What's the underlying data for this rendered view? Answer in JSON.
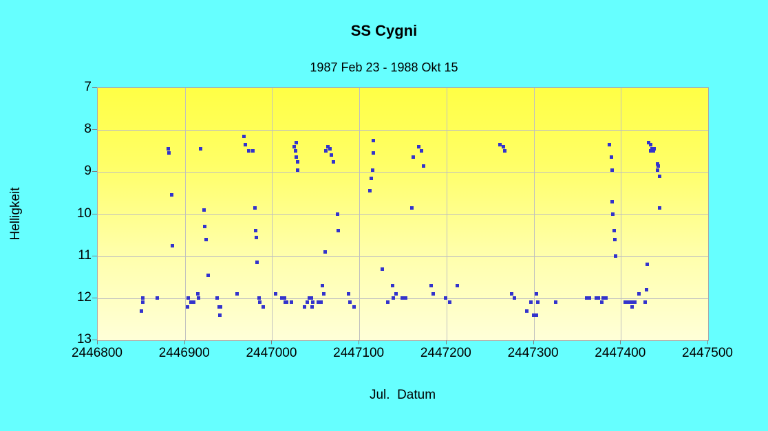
{
  "title": "SS Cygni",
  "subtitle": "1987 Feb 23 - 1988 Okt 15",
  "xlabel": "Jul.  Datum",
  "ylabel": "Helligkeit",
  "colors": {
    "page_background": "#66FFFF",
    "plot_gradient_top": "#FFFF45",
    "plot_gradient_bottom": "#FFFFD8",
    "point": "#3333CC",
    "gridline": "#BFBFBF",
    "text": "#000000"
  },
  "chart_data": {
    "type": "scatter",
    "title": "SS Cygni",
    "subtitle": "1987 Feb 23 - 1988 Okt 15",
    "xlabel": "Jul.  Datum",
    "ylabel": "Helligkeit",
    "xlim": [
      2446800,
      2447500
    ],
    "ylim": [
      7,
      13
    ],
    "y_axis_inverted": true,
    "grid": true,
    "marker": "square",
    "x_ticks": [
      2446800,
      2446900,
      2447000,
      2447100,
      2447200,
      2447300,
      2447400,
      2447500
    ],
    "y_ticks": [
      7,
      8,
      9,
      10,
      11,
      12,
      13
    ],
    "points": [
      [
        2446850,
        12.3
      ],
      [
        2446852,
        12.0
      ],
      [
        2446852,
        12.1
      ],
      [
        2446868,
        12.0
      ],
      [
        2446881,
        8.45
      ],
      [
        2446882,
        8.55
      ],
      [
        2446885,
        9.55
      ],
      [
        2446886,
        10.75
      ],
      [
        2446903,
        12.2
      ],
      [
        2446904,
        12.0
      ],
      [
        2446907,
        12.1
      ],
      [
        2446910,
        12.1
      ],
      [
        2446915,
        11.9
      ],
      [
        2446916,
        12.0
      ],
      [
        2446918,
        8.45
      ],
      [
        2446922,
        9.9
      ],
      [
        2446923,
        10.3
      ],
      [
        2446924,
        10.6
      ],
      [
        2446927,
        11.45
      ],
      [
        2446937,
        12.0
      ],
      [
        2446939,
        12.2
      ],
      [
        2446940,
        12.4
      ],
      [
        2446941,
        12.2
      ],
      [
        2446960,
        11.9
      ],
      [
        2446968,
        8.15
      ],
      [
        2446969,
        8.35
      ],
      [
        2446973,
        8.5
      ],
      [
        2446978,
        8.5
      ],
      [
        2446980,
        9.85
      ],
      [
        2446981,
        10.4
      ],
      [
        2446982,
        10.55
      ],
      [
        2446983,
        11.15
      ],
      [
        2446985,
        12.0
      ],
      [
        2446986,
        12.1
      ],
      [
        2446990,
        12.2
      ],
      [
        2447004,
        11.9
      ],
      [
        2447011,
        12.0
      ],
      [
        2447014,
        12.0
      ],
      [
        2447015,
        12.1
      ],
      [
        2447017,
        12.1
      ],
      [
        2447022,
        12.1
      ],
      [
        2447025,
        8.4
      ],
      [
        2447027,
        8.5
      ],
      [
        2447028,
        8.3
      ],
      [
        2447028,
        8.65
      ],
      [
        2447029,
        8.75
      ],
      [
        2447029,
        8.95
      ],
      [
        2447037,
        12.2
      ],
      [
        2447040,
        12.1
      ],
      [
        2447043,
        12.0
      ],
      [
        2447045,
        12.0
      ],
      [
        2447046,
        12.2
      ],
      [
        2447047,
        12.1
      ],
      [
        2447053,
        12.1
      ],
      [
        2447056,
        12.1
      ],
      [
        2447058,
        11.7
      ],
      [
        2447059,
        11.9
      ],
      [
        2447061,
        10.9
      ],
      [
        2447062,
        8.5
      ],
      [
        2447064,
        8.4
      ],
      [
        2447066,
        8.45
      ],
      [
        2447068,
        8.6
      ],
      [
        2447070,
        8.75
      ],
      [
        2447075,
        10.0
      ],
      [
        2447076,
        10.4
      ],
      [
        2447088,
        11.9
      ],
      [
        2447089,
        12.1
      ],
      [
        2447094,
        12.2
      ],
      [
        2447112,
        9.45
      ],
      [
        2447114,
        9.15
      ],
      [
        2447115,
        8.95
      ],
      [
        2447116,
        8.25
      ],
      [
        2447116,
        8.55
      ],
      [
        2447126,
        11.3
      ],
      [
        2447133,
        12.1
      ],
      [
        2447138,
        11.7
      ],
      [
        2447139,
        12.0
      ],
      [
        2447142,
        11.9
      ],
      [
        2447149,
        12.0
      ],
      [
        2447153,
        12.0
      ],
      [
        2447160,
        9.85
      ],
      [
        2447162,
        8.65
      ],
      [
        2447168,
        8.4
      ],
      [
        2447171,
        8.5
      ],
      [
        2447174,
        8.85
      ],
      [
        2447182,
        11.7
      ],
      [
        2447185,
        11.9
      ],
      [
        2447199,
        12.0
      ],
      [
        2447204,
        12.1
      ],
      [
        2447212,
        11.7
      ],
      [
        2447261,
        8.35
      ],
      [
        2447265,
        8.4
      ],
      [
        2447267,
        8.5
      ],
      [
        2447275,
        11.9
      ],
      [
        2447278,
        12.0
      ],
      [
        2447292,
        12.3
      ],
      [
        2447297,
        12.1
      ],
      [
        2447300,
        12.4
      ],
      [
        2447303,
        11.9
      ],
      [
        2447303,
        12.4
      ],
      [
        2447305,
        12.1
      ],
      [
        2447325,
        12.1
      ],
      [
        2447361,
        12.0
      ],
      [
        2447364,
        12.0
      ],
      [
        2447372,
        12.0
      ],
      [
        2447374,
        12.0
      ],
      [
        2447378,
        12.1
      ],
      [
        2447380,
        12.0
      ],
      [
        2447383,
        12.0
      ],
      [
        2447387,
        8.35
      ],
      [
        2447389,
        8.65
      ],
      [
        2447390,
        8.95
      ],
      [
        2447390,
        9.7
      ],
      [
        2447391,
        10.0
      ],
      [
        2447392,
        10.4
      ],
      [
        2447393,
        10.6
      ],
      [
        2447394,
        11.0
      ],
      [
        2447405,
        12.1
      ],
      [
        2447409,
        12.1
      ],
      [
        2447413,
        12.1
      ],
      [
        2447413,
        12.2
      ],
      [
        2447416,
        12.1
      ],
      [
        2447421,
        11.9
      ],
      [
        2447428,
        12.1
      ],
      [
        2447429,
        11.8
      ],
      [
        2447430,
        11.2
      ],
      [
        2447432,
        8.3
      ],
      [
        2447434,
        8.35
      ],
      [
        2447434,
        8.5
      ],
      [
        2447436,
        8.45
      ],
      [
        2447437,
        8.5
      ],
      [
        2447438,
        8.45
      ],
      [
        2447442,
        8.8
      ],
      [
        2447442,
        8.95
      ],
      [
        2447443,
        8.85
      ],
      [
        2447444,
        9.1
      ],
      [
        2447444,
        9.85
      ]
    ]
  }
}
